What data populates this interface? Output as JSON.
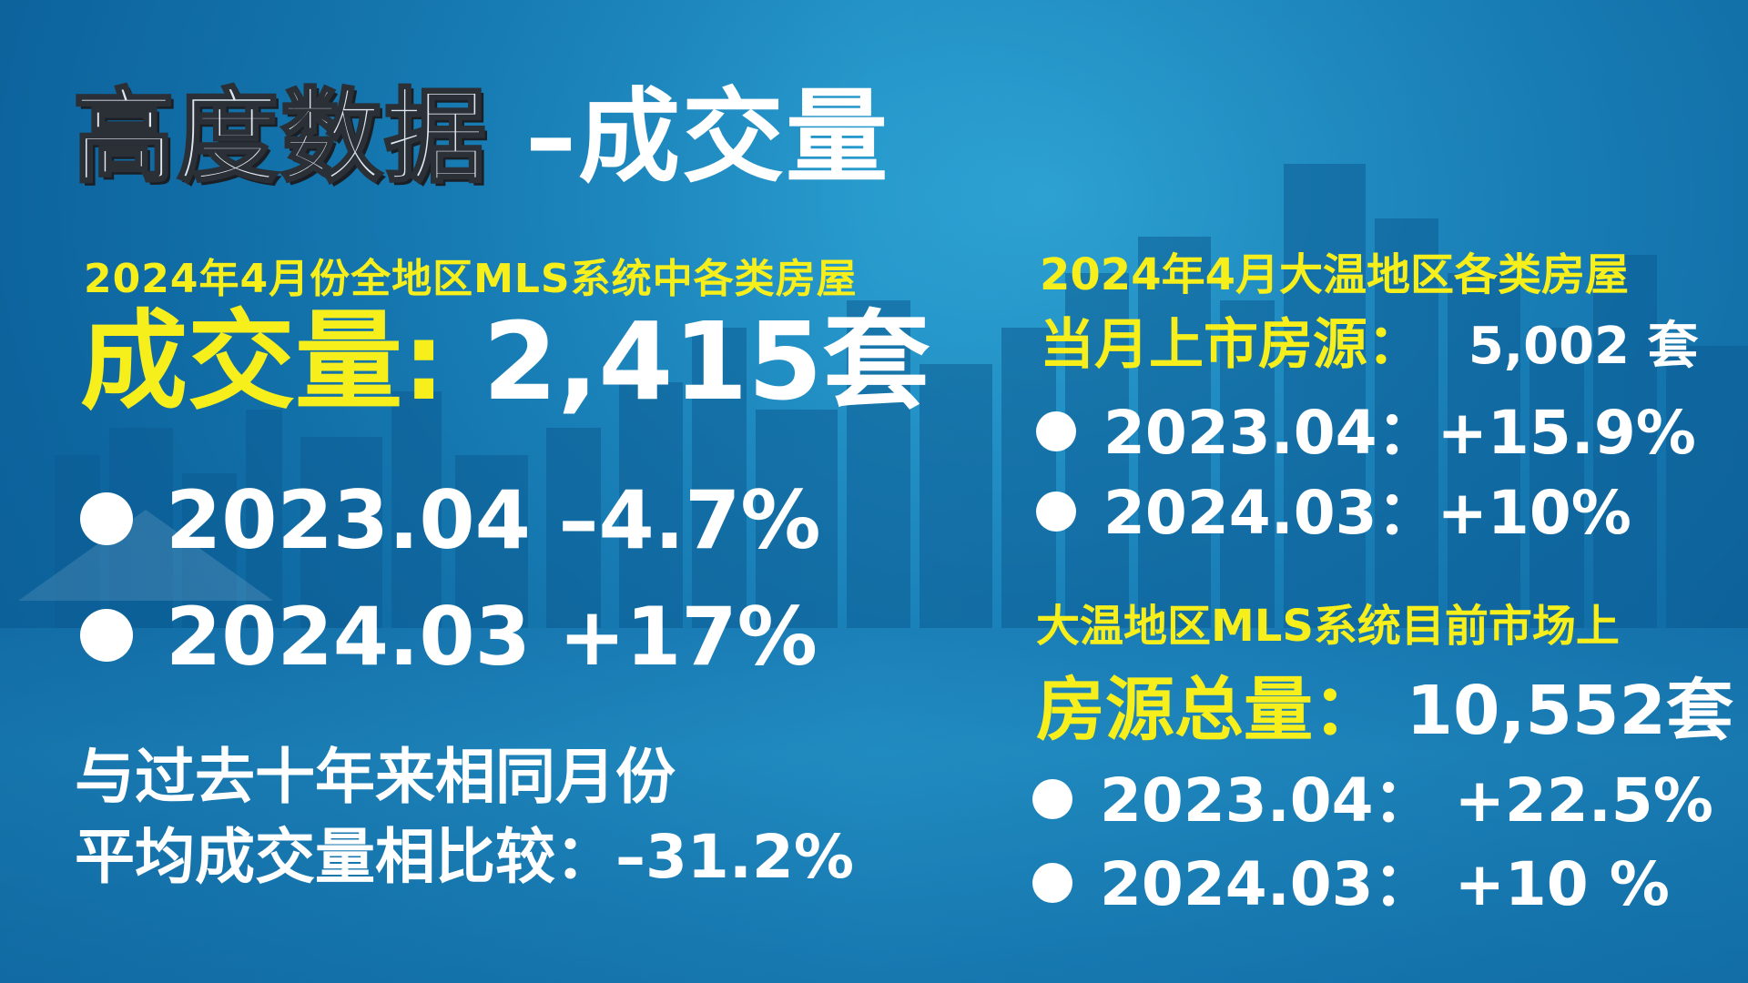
{
  "title": {
    "main": "高度数据",
    "dash_part": "–成交量"
  },
  "left": {
    "subtitle": "2024年4月份全地区MLS系统中各类房屋",
    "big_label": "成交量:",
    "big_value": "2,415套",
    "rows": [
      {
        "text": "2023.04 –4.7%"
      },
      {
        "text": "2024.03 +17%"
      }
    ],
    "note_line1": "与过去十年来相同月份",
    "note_line2": "平均成交量相比较：–31.2%"
  },
  "right": {
    "subtitle1": "2024年4月大温地区各类房屋",
    "head1_label": "当月上市房源：",
    "head1_value": "5,002 套",
    "rows1": [
      {
        "text": "2023.04：+15.9%"
      },
      {
        "text": "2024.03：+10%"
      }
    ],
    "subtitle2": "大温地区MLS系统目前市场上",
    "head2_label": "房源总量：",
    "head2_value": "10,552套",
    "rows2": [
      {
        "text": "2023.04：  +22.5%"
      },
      {
        "text": "2024.03：  +10 %"
      }
    ]
  },
  "colors": {
    "accent_yellow": "#f6ef1b",
    "background_blue": "#1c86bd",
    "text_white": "#ffffff"
  }
}
